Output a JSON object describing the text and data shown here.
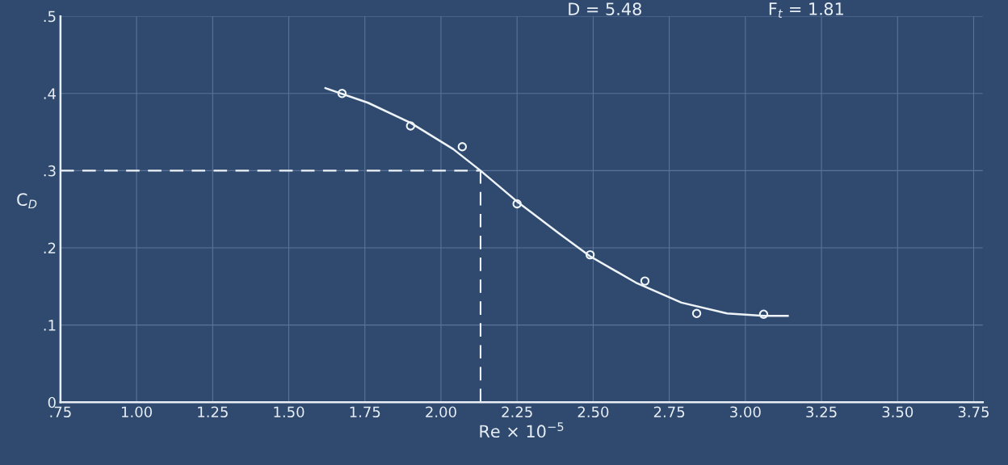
{
  "chart_data": {
    "type": "scatter",
    "xlabel": "Re × 10$^{−5}$",
    "ylabel": "C$_{D}$",
    "annotations": [
      "D = 5.48",
      "F$_{t}$ = 1.81"
    ],
    "series": [
      {
        "color": "#eef3f8",
        "marker": "circle",
        "x": [
          1.675,
          1.9,
          2.07,
          2.25,
          2.49,
          2.67,
          2.84,
          3.06
        ],
        "values": [
          0.4,
          0.358,
          0.331,
          0.257,
          0.191,
          0.157,
          0.115,
          0.114
        ]
      },
      {
        "type": "line",
        "color": "#eef3f8",
        "marker": "none",
        "line_style": "solid",
        "x": [
          1.62,
          1.76,
          1.9,
          2.04,
          2.13,
          2.25,
          2.39,
          2.49,
          2.64,
          2.79,
          2.94,
          3.06,
          3.14
        ],
        "values": [
          0.407,
          0.388,
          0.362,
          0.328,
          0.3,
          0.26,
          0.218,
          0.189,
          0.155,
          0.129,
          0.115,
          0.112,
          0.112
        ]
      }
    ],
    "ref_lines": [
      {
        "axis": "y",
        "value": 0.3,
        "color": "#eef3f8",
        "line_style": "dashed"
      },
      {
        "axis": "x",
        "value": 2.13,
        "color": "#eef3f8",
        "line_style": "dashed"
      }
    ],
    "xlim": [
      0.75,
      3.78
    ],
    "ylim": [
      0,
      0.5
    ],
    "xticks": [
      {
        "value": 0.75,
        "label": ".75"
      },
      {
        "value": 1.0,
        "label": "1.00"
      },
      {
        "value": 1.25,
        "label": "1.25"
      },
      {
        "value": 1.5,
        "label": "1.50"
      },
      {
        "value": 1.75,
        "label": "1.75"
      },
      {
        "value": 2.0,
        "label": "2.00"
      },
      {
        "value": 2.25,
        "label": "2.25"
      },
      {
        "value": 2.5,
        "label": "2.50"
      },
      {
        "value": 2.75,
        "label": "2.75"
      },
      {
        "value": 3.0,
        "label": "3.00"
      },
      {
        "value": 3.25,
        "label": "3.25"
      },
      {
        "value": 3.5,
        "label": "3.50"
      },
      {
        "value": 3.75,
        "label": "3.75"
      }
    ],
    "yticks": [
      0,
      {
        "value": 0.1,
        "label": ".1"
      },
      {
        "value": 0.2,
        "label": ".2"
      },
      {
        "value": 0.3,
        "label": ".3"
      },
      {
        "value": 0.4,
        "label": ".4"
      },
      {
        "value": 0.5,
        "label": ".5"
      }
    ],
    "grid": true,
    "legend": false
  }
}
